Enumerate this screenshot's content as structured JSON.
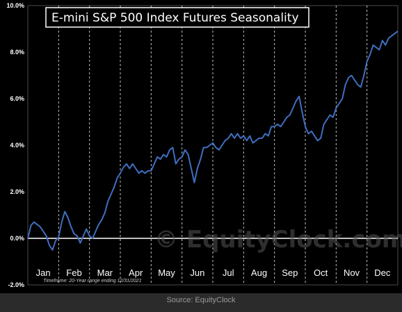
{
  "chart_data": {
    "type": "line",
    "title": "E-mini S&P 500 Index Futures Seasonality",
    "xlabel": "",
    "ylabel": "",
    "ylim": [
      -2.0,
      10.0
    ],
    "y_ticks": [
      "-2.0%",
      "0.0%",
      "2.0%",
      "4.0%",
      "6.0%",
      "8.0%",
      "10.0%"
    ],
    "months": [
      "Jan",
      "Feb",
      "Mar",
      "Apr",
      "May",
      "Jun",
      "Jul",
      "Aug",
      "Sep",
      "Oct",
      "Nov",
      "Dec"
    ],
    "grid": "vertical dashed at month boundaries",
    "line_color": "#3f6fc0",
    "series": [
      {
        "x": [
          0.0,
          0.1,
          0.2,
          0.3,
          0.4,
          0.5,
          0.6,
          0.7,
          0.8,
          0.9,
          1.0,
          1.1,
          1.2,
          1.3,
          1.4,
          1.5,
          1.6,
          1.7,
          1.8,
          1.9,
          2.0,
          2.1,
          2.2,
          2.3,
          2.4,
          2.5,
          2.6,
          2.7,
          2.8,
          2.9,
          3.0,
          3.1,
          3.2,
          3.3,
          3.4,
          3.5,
          3.6,
          3.7,
          3.8,
          3.9,
          4.0,
          4.1,
          4.2,
          4.3,
          4.4,
          4.5,
          4.6,
          4.7,
          4.8,
          4.9,
          5.0,
          5.1,
          5.2,
          5.3,
          5.4,
          5.5,
          5.6,
          5.7,
          5.8,
          5.9,
          6.0,
          6.1,
          6.2,
          6.3,
          6.4,
          6.5,
          6.6,
          6.7,
          6.8,
          6.9,
          7.0,
          7.1,
          7.2,
          7.3,
          7.4,
          7.5,
          7.6,
          7.7,
          7.8,
          7.9,
          8.0,
          8.1,
          8.2,
          8.3,
          8.4,
          8.5,
          8.6,
          8.7,
          8.8,
          8.9,
          9.0,
          9.1,
          9.2,
          9.3,
          9.4,
          9.5,
          9.6,
          9.7,
          9.8,
          9.9,
          10.0,
          10.1,
          10.2,
          10.3,
          10.4,
          10.5,
          10.6,
          10.7,
          10.8,
          10.9,
          11.0,
          11.1,
          11.2,
          11.3,
          11.4,
          11.5,
          11.6,
          11.7,
          11.8,
          11.9,
          12.0
        ],
        "values": [
          0.0,
          0.55,
          0.7,
          0.6,
          0.5,
          0.3,
          0.1,
          -0.3,
          -0.5,
          -0.1,
          0.05,
          0.7,
          1.15,
          0.9,
          0.5,
          0.2,
          0.1,
          -0.2,
          0.1,
          0.4,
          0.1,
          0.0,
          0.3,
          0.6,
          0.8,
          1.1,
          1.6,
          1.9,
          2.2,
          2.6,
          2.8,
          3.05,
          3.2,
          3.0,
          3.2,
          3.0,
          2.8,
          2.9,
          2.8,
          2.9,
          2.9,
          3.2,
          3.5,
          3.4,
          3.6,
          3.5,
          3.8,
          3.9,
          3.2,
          3.4,
          3.5,
          3.8,
          3.6,
          3.0,
          2.4,
          3.0,
          3.4,
          3.9,
          3.9,
          4.0,
          4.1,
          3.9,
          3.8,
          4.0,
          4.2,
          4.3,
          4.5,
          4.3,
          4.5,
          4.3,
          4.4,
          4.2,
          4.4,
          4.1,
          4.2,
          4.3,
          4.3,
          4.5,
          4.4,
          4.8,
          4.8,
          4.9,
          4.8,
          5.0,
          5.2,
          5.3,
          5.6,
          5.9,
          6.1,
          5.4,
          4.8,
          4.5,
          4.6,
          4.4,
          4.2,
          4.3,
          4.9,
          5.1,
          5.3,
          5.2,
          5.6,
          5.8,
          6.0,
          6.6,
          6.9,
          7.0,
          6.8,
          6.6,
          6.5,
          7.0,
          7.6,
          7.9,
          8.3,
          8.2,
          8.1,
          8.5,
          8.3,
          8.6,
          8.7,
          8.8,
          8.9
        ]
      }
    ],
    "annotations": {
      "timeframe": "Timeframe:  20-Year range  ending 12/31/2021",
      "watermark": "© EquityClock.com"
    }
  },
  "source": "Source: EquityClock"
}
